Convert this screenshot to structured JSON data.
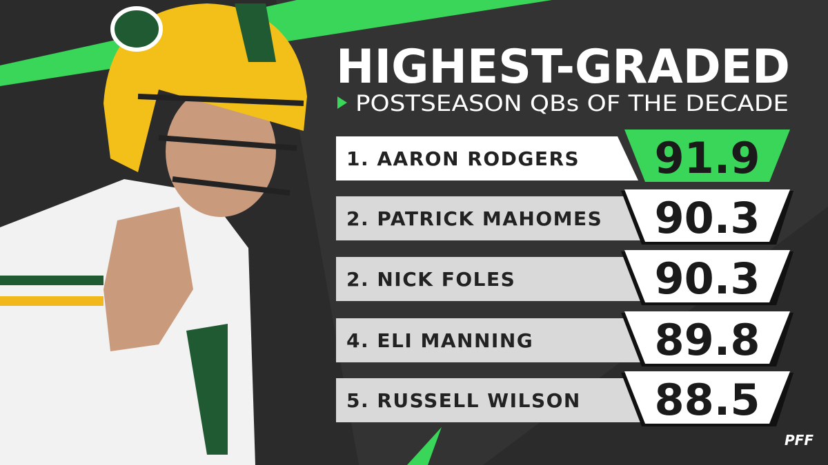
{
  "header": {
    "title": "HIGHEST-GRADED",
    "subtitle": "POSTSEASON QBs OF THE DECADE"
  },
  "rows": [
    {
      "name": "1. AARON RODGERS",
      "grade": "91.9"
    },
    {
      "name": "2. PATRICK MAHOMES",
      "grade": "90.3"
    },
    {
      "name": "2. NICK FOLES",
      "grade": "90.3"
    },
    {
      "name": "4. ELI MANNING",
      "grade": "89.8"
    },
    {
      "name": "5. RUSSELL WILSON",
      "grade": "88.5"
    }
  ],
  "logo": "PFF"
}
